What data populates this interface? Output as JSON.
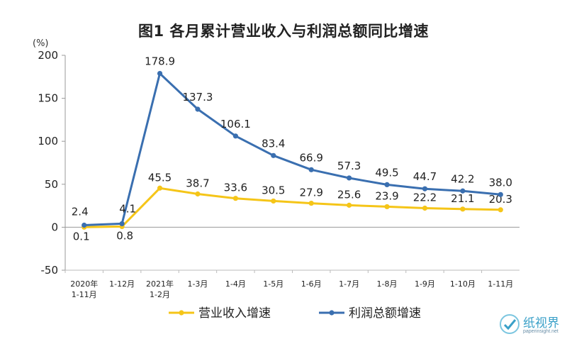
{
  "page": {
    "title": "图1  各月累计营业收入与利润总额同比增速",
    "unit": "(%)"
  },
  "chart_data": {
    "type": "line",
    "title": "图1  各月累计营业收入与利润总额同比增速",
    "ylabel": "(%)",
    "ylim": [
      -50,
      200
    ],
    "yticks": [
      -50,
      0,
      50,
      100,
      150,
      200
    ],
    "grid": false,
    "legend_position": "bottom",
    "categories": [
      [
        "2020年",
        "1-11月"
      ],
      [
        "1-12月"
      ],
      [
        "2021年",
        "1-2月"
      ],
      [
        "1-3月"
      ],
      [
        "1-4月"
      ],
      [
        "1-5月"
      ],
      [
        "1-6月"
      ],
      [
        "1-7月"
      ],
      [
        "1-8月"
      ],
      [
        "1-9月"
      ],
      [
        "1-10月"
      ],
      [
        "1-11月"
      ]
    ],
    "series": [
      {
        "name": "营业收入增速",
        "color": "#f5c518",
        "values": [
          0.1,
          0.8,
          45.5,
          38.7,
          33.6,
          30.5,
          27.9,
          25.6,
          23.9,
          22.2,
          21.1,
          20.3
        ],
        "labels": [
          "0.1",
          "0.8",
          "45.5",
          "38.7",
          "33.6",
          "30.5",
          "27.9",
          "25.6",
          "23.9",
          "22.2",
          "21.1",
          "20.3"
        ]
      },
      {
        "name": "利润总额增速",
        "color": "#3a6fb0",
        "values": [
          2.4,
          4.1,
          178.9,
          137.3,
          106.1,
          83.4,
          66.9,
          57.3,
          49.5,
          44.7,
          42.2,
          38.0
        ],
        "labels": [
          "2.4",
          "4.1",
          "178.9",
          "137.3",
          "106.1",
          "83.4",
          "66.9",
          "57.3",
          "49.5",
          "44.7",
          "42.2",
          "38.0"
        ]
      }
    ]
  },
  "watermark": {
    "name": "纸视界",
    "url": "paperinsight.net"
  }
}
